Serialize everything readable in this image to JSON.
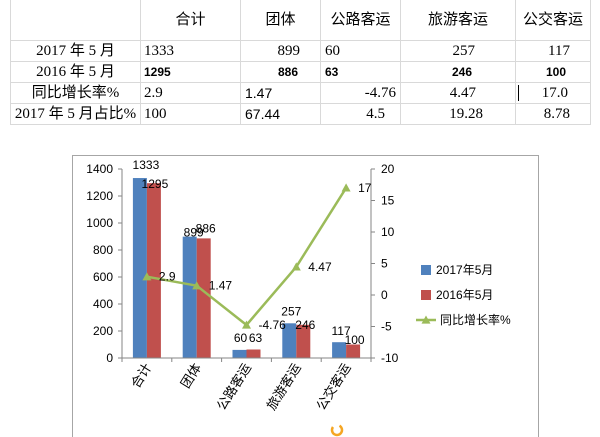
{
  "table": {
    "header": [
      "合计",
      "团体",
      "公路客运",
      "旅游客运",
      "公交客运"
    ],
    "rows": [
      {
        "label": "2017 年 5 月",
        "cells": [
          "1333",
          "899",
          "60",
          "257",
          "117"
        ]
      },
      {
        "label": "2016 年 5 月",
        "cells": [
          "1295",
          "886",
          "63",
          "246",
          "100"
        ]
      },
      {
        "label": "同比增长率%",
        "cells": [
          "2.9",
          "1.47",
          "-4.76",
          "4.47",
          "17.0"
        ]
      },
      {
        "label": "2017 年 5 月占比%",
        "cells": [
          "100",
          "67.44",
          "4.5",
          "19.28",
          "8.78"
        ]
      }
    ]
  },
  "chart_data": {
    "type": "bar",
    "categories": [
      "合计",
      "团体",
      "公路客运",
      "旅游客运",
      "公交客运"
    ],
    "series": [
      {
        "name": "2017年5月",
        "type": "bar",
        "axis": "left",
        "color": "#4F81BD",
        "values": [
          1333,
          899,
          60,
          257,
          117
        ]
      },
      {
        "name": "2016年5月",
        "type": "bar",
        "axis": "left",
        "color": "#C0504D",
        "values": [
          1295,
          886,
          63,
          246,
          100
        ]
      },
      {
        "name": "同比增长率%",
        "type": "line",
        "axis": "right",
        "marker": "triangle",
        "color": "#9BBB59",
        "values": [
          2.9,
          1.47,
          -4.76,
          4.47,
          17
        ]
      }
    ],
    "y_left": {
      "min": 0,
      "max": 1400,
      "ticks": [
        0,
        200,
        400,
        600,
        800,
        1000,
        1200,
        1400
      ]
    },
    "y_right": {
      "min": -10,
      "max": 20,
      "ticks": [
        -10,
        -5,
        0,
        5,
        10,
        15,
        20
      ]
    },
    "data_labels": true,
    "legend": "right",
    "grid": false
  },
  "icons": {
    "bottom_badge": "orange-ring-icon"
  }
}
